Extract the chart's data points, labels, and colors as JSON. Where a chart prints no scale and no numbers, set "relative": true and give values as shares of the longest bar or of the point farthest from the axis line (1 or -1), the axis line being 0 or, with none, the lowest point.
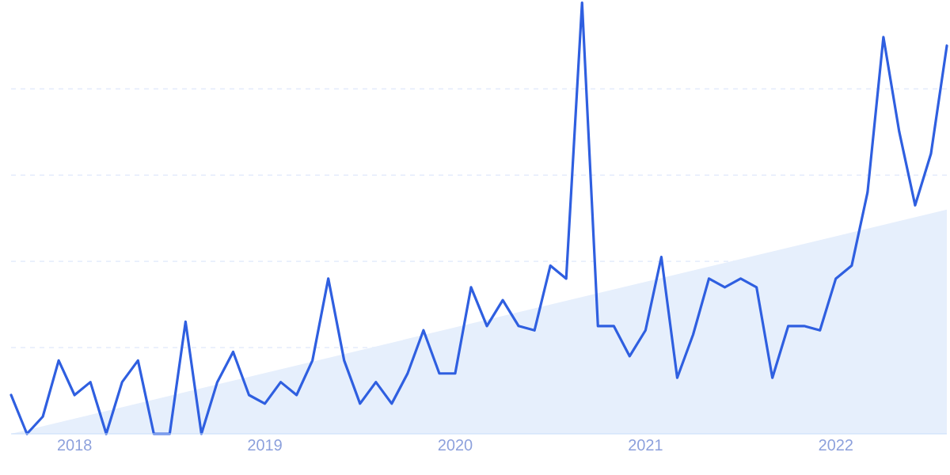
{
  "chart_data": {
    "type": "line",
    "relative": true,
    "grid": "y",
    "x": [
      "2017-09",
      "2017-10",
      "2017-11",
      "2017-12",
      "2018-01",
      "2018-02",
      "2018-03",
      "2018-04",
      "2018-05",
      "2018-06",
      "2018-07",
      "2018-08",
      "2018-09",
      "2018-10",
      "2018-11",
      "2018-12",
      "2019-01",
      "2019-02",
      "2019-03",
      "2019-04",
      "2019-05",
      "2019-06",
      "2019-07",
      "2019-08",
      "2019-09",
      "2019-10",
      "2019-11",
      "2019-12",
      "2020-01",
      "2020-02",
      "2020-03",
      "2020-04",
      "2020-05",
      "2020-06",
      "2020-07",
      "2020-08",
      "2020-09",
      "2020-10",
      "2020-11",
      "2020-12",
      "2021-01",
      "2021-02",
      "2021-03",
      "2021-04",
      "2021-05",
      "2021-06",
      "2021-07",
      "2021-08",
      "2021-09",
      "2021-10",
      "2021-11",
      "2021-12",
      "2022-01",
      "2022-02",
      "2022-03",
      "2022-04",
      "2022-05",
      "2022-06",
      "2022-07",
      "2022-08"
    ],
    "xlim": [
      "2017-09",
      "2022-08"
    ],
    "xticks": [
      "2018",
      "2019",
      "2020",
      "2021",
      "2022"
    ],
    "series": [
      {
        "type": "area",
        "color": "#e6effc",
        "x": [
          "2017-09",
          "2022-08"
        ],
        "values": [
          0,
          0.52
        ]
      },
      {
        "color": "#2f5fe0",
        "values": [
          0.09,
          0,
          0.04,
          0.17,
          0.09,
          0.12,
          0,
          0.12,
          0.17,
          0,
          0,
          0.26,
          0,
          0.12,
          0.19,
          0.09,
          0.07,
          0.12,
          0.09,
          0.17,
          0.36,
          0.17,
          0.07,
          0.12,
          0.07,
          0.14,
          0.24,
          0.14,
          0.14,
          0.34,
          0.25,
          0.31,
          0.25,
          0.24,
          0.39,
          0.36,
          1,
          0.25,
          0.25,
          0.18,
          0.24,
          0.41,
          0.13,
          0.23,
          0.36,
          0.34,
          0.36,
          0.34,
          0.13,
          0.25,
          0.25,
          0.24,
          0.36,
          0.39,
          0.56,
          0.92,
          0.7,
          0.53,
          0.65,
          0.9
        ]
      }
    ]
  }
}
